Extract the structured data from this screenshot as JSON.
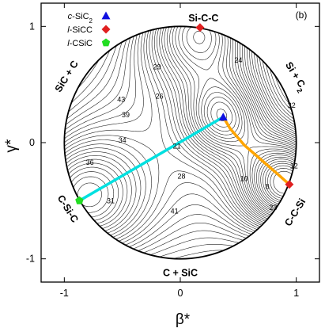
{
  "chart_data": {
    "type": "line",
    "panel_tag": "(b)",
    "xlabel": "β*",
    "ylabel": "γ*",
    "xlim": [
      -1.2,
      1.2
    ],
    "ylim": [
      -1.2,
      1.2
    ],
    "xticks": [
      -1,
      0,
      1
    ],
    "yticks": [
      -1,
      0,
      1
    ],
    "grid": false,
    "legend_position": "top-left",
    "legend": [
      {
        "prefix": "c",
        "name": "-SiC",
        "sub": "2",
        "marker": "triangle",
        "color": "#1010e0"
      },
      {
        "prefix": "l",
        "name": "-SiCC",
        "sub": "",
        "marker": "diamond",
        "color": "#e02020"
      },
      {
        "prefix": "l",
        "name": "-CSiC",
        "sub": "",
        "marker": "pentagon",
        "color": "#22dd22"
      }
    ],
    "region_labels": [
      {
        "text": "Si-C-C",
        "x": 0.2,
        "y": 1.07,
        "rotate": 0
      },
      {
        "text": "SiC + C",
        "x": -0.98,
        "y": 0.57,
        "rotate": -58
      },
      {
        "text": "Si + C",
        "sub": "2",
        "x": 1.0,
        "y": 0.57,
        "rotate": 58
      },
      {
        "text": "C-Si-C",
        "x": -0.97,
        "y": -0.57,
        "rotate": 58
      },
      {
        "text": "C-C-Si",
        "x": 0.99,
        "y": -0.6,
        "rotate": -58
      },
      {
        "text": "C + SiC",
        "x": 0.0,
        "y": -1.12,
        "rotate": 0
      }
    ],
    "contour_labels": [
      {
        "text": "29",
        "x": -0.2,
        "y": 0.65
      },
      {
        "text": "24",
        "x": 0.5,
        "y": 0.71
      },
      {
        "text": "43",
        "x": -0.51,
        "y": 0.37
      },
      {
        "text": "26",
        "x": -0.18,
        "y": 0.4
      },
      {
        "text": "39",
        "x": -0.47,
        "y": 0.24
      },
      {
        "text": "32",
        "x": 0.96,
        "y": 0.32
      },
      {
        "text": "34",
        "x": -0.5,
        "y": 0.02
      },
      {
        "text": "21",
        "x": -0.03,
        "y": -0.03
      },
      {
        "text": "36",
        "x": -0.78,
        "y": -0.17
      },
      {
        "text": "12",
        "x": 0.98,
        "y": -0.2
      },
      {
        "text": "28",
        "x": 0.01,
        "y": -0.29
      },
      {
        "text": "10",
        "x": 0.55,
        "y": -0.31
      },
      {
        "text": "8",
        "x": 0.75,
        "y": -0.38
      },
      {
        "text": "31",
        "x": -0.6,
        "y": -0.5
      },
      {
        "text": "23",
        "x": 0.8,
        "y": -0.56
      },
      {
        "text": "41",
        "x": -0.05,
        "y": -0.59
      }
    ],
    "series": [
      {
        "name": "",
        "color": "#00e0e0",
        "x": [
          -0.87,
          0.37
        ],
        "y": [
          -0.5,
          0.22
        ]
      },
      {
        "name": "",
        "color": "#ffa500",
        "x": [
          0.37,
          0.43,
          0.55,
          0.7,
          0.85,
          0.94
        ],
        "y": [
          0.22,
          0.12,
          -0.02,
          -0.15,
          -0.28,
          -0.36
        ]
      }
    ],
    "markers": [
      {
        "shape": "triangle",
        "color": "#1010e0",
        "x": 0.37,
        "y": 0.22
      },
      {
        "shape": "diamond",
        "color": "#e02020",
        "x": 0.17,
        "y": 0.99
      },
      {
        "shape": "diamond",
        "color": "#e02020",
        "x": 0.94,
        "y": -0.36
      },
      {
        "shape": "pentagon",
        "color": "#22dd22",
        "x": -0.87,
        "y": -0.5
      }
    ],
    "boundary": {
      "shape": "circle",
      "radius": 1.0
    }
  }
}
